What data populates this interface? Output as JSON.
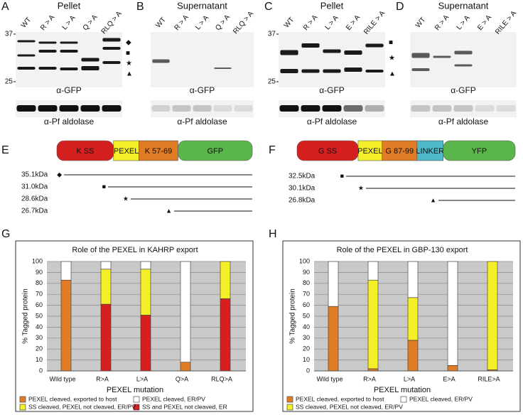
{
  "panels": [
    {
      "letter": "A",
      "title": "Pellet",
      "lanes": [
        "WT",
        "R > A",
        "L > A",
        "Q > A",
        "RLQ > A"
      ],
      "markers": [
        37,
        25
      ],
      "symbols": [
        "◆",
        "■",
        "★",
        "▲"
      ],
      "antibodies": [
        "α-GFP",
        "α-Pf aldolase"
      ]
    },
    {
      "letter": "B",
      "title": "Supernatant",
      "lanes": [
        "WT",
        "R > A",
        "L > A",
        "Q > A",
        "RLQ > A"
      ],
      "antibodies": [
        "α-GFP",
        "α-Pf aldolase"
      ]
    },
    {
      "letter": "C",
      "title": "Pellet",
      "lanes": [
        "WT",
        "R > A",
        "L > A",
        "E > A",
        "RILE > A"
      ],
      "markers": [
        37,
        25
      ],
      "symbols": [
        "■",
        "★",
        "▲"
      ],
      "antibodies": [
        "α-GFP",
        "α-Pf aldolase"
      ]
    },
    {
      "letter": "D",
      "title": "Supernatant",
      "lanes": [
        "WT",
        "R > A",
        "L > A",
        "E > A",
        "RILE > A"
      ],
      "antibodies": [
        "α-GFP",
        "α-Pf aldolase"
      ]
    }
  ],
  "constructs": [
    {
      "letter": "E",
      "segments": [
        "K SS",
        "PEXEL",
        "K 57-69",
        "GFP"
      ],
      "products": [
        {
          "mass": "35.1kDa",
          "symbol": "◆"
        },
        {
          "mass": "31.0kDa",
          "symbol": "■"
        },
        {
          "mass": "28.6kDa",
          "symbol": "★"
        },
        {
          "mass": "26.7kDa",
          "symbol": "▲"
        }
      ]
    },
    {
      "letter": "F",
      "segments": [
        "G SS",
        "PEXEL",
        "G 87-99",
        "LINKER",
        "YFP"
      ],
      "products": [
        {
          "mass": "32.5kDa",
          "symbol": "■"
        },
        {
          "mass": "30.1kDa",
          "symbol": "★"
        },
        {
          "mass": "26.8kDa",
          "symbol": "▲"
        }
      ]
    }
  ],
  "chart_data": [
    {
      "type": "stacked_bar",
      "panel_label": "G",
      "title": "Role of the PEXEL in KAHRP export",
      "x_label": "PEXEL mutation",
      "y_label": "% Tagged protein",
      "categories": [
        "Wild type",
        "R>A",
        "L>A",
        "Q>A",
        "RLQ>A"
      ],
      "series": [
        {
          "name": "PEXEL cleaved, exported to host",
          "color": "#e07b26",
          "values": [
            83,
            0,
            0,
            8,
            0
          ]
        },
        {
          "name": "SS and PEXEL not cleaved, ER",
          "color": "#d62020",
          "values": [
            0,
            61,
            51,
            0,
            66
          ]
        },
        {
          "name": "SS cleaved, PEXEL not cleaved, ER/PV",
          "color": "#f5ef2a",
          "values": [
            0,
            32,
            42,
            0,
            34
          ]
        },
        {
          "name": "PEXEL cleaved, ER/PV",
          "color": "#ffffff",
          "values": [
            17,
            7,
            7,
            92,
            0
          ]
        }
      ],
      "ylim": [
        0,
        100
      ],
      "yticks": [
        0,
        10,
        20,
        30,
        40,
        50,
        60,
        70,
        80,
        90,
        100
      ],
      "grid": true
    },
    {
      "type": "stacked_bar",
      "panel_label": "H",
      "title": "Role of the PEXEL in GBP-130 export",
      "x_label": "PEXEL mutation",
      "y_label": "% Tagged protein",
      "categories": [
        "Wild type",
        "R>A",
        "L>A",
        "E>A",
        "RILE>A"
      ],
      "series": [
        {
          "name": "PEXEL cleaved, exported to host",
          "color": "#e07b26",
          "values": [
            59,
            2,
            28,
            5,
            1
          ]
        },
        {
          "name": "SS cleaved, PEXEL not cleaved, ER/PV",
          "color": "#f5ef2a",
          "values": [
            0,
            81,
            39,
            0,
            99
          ]
        },
        {
          "name": "PEXEL cleaved, ER/PV",
          "color": "#ffffff",
          "values": [
            41,
            17,
            33,
            95,
            0
          ]
        }
      ],
      "ylim": [
        0,
        100
      ],
      "yticks": [
        0,
        10,
        20,
        30,
        40,
        50,
        60,
        70,
        80,
        90,
        100
      ],
      "grid": true
    }
  ]
}
